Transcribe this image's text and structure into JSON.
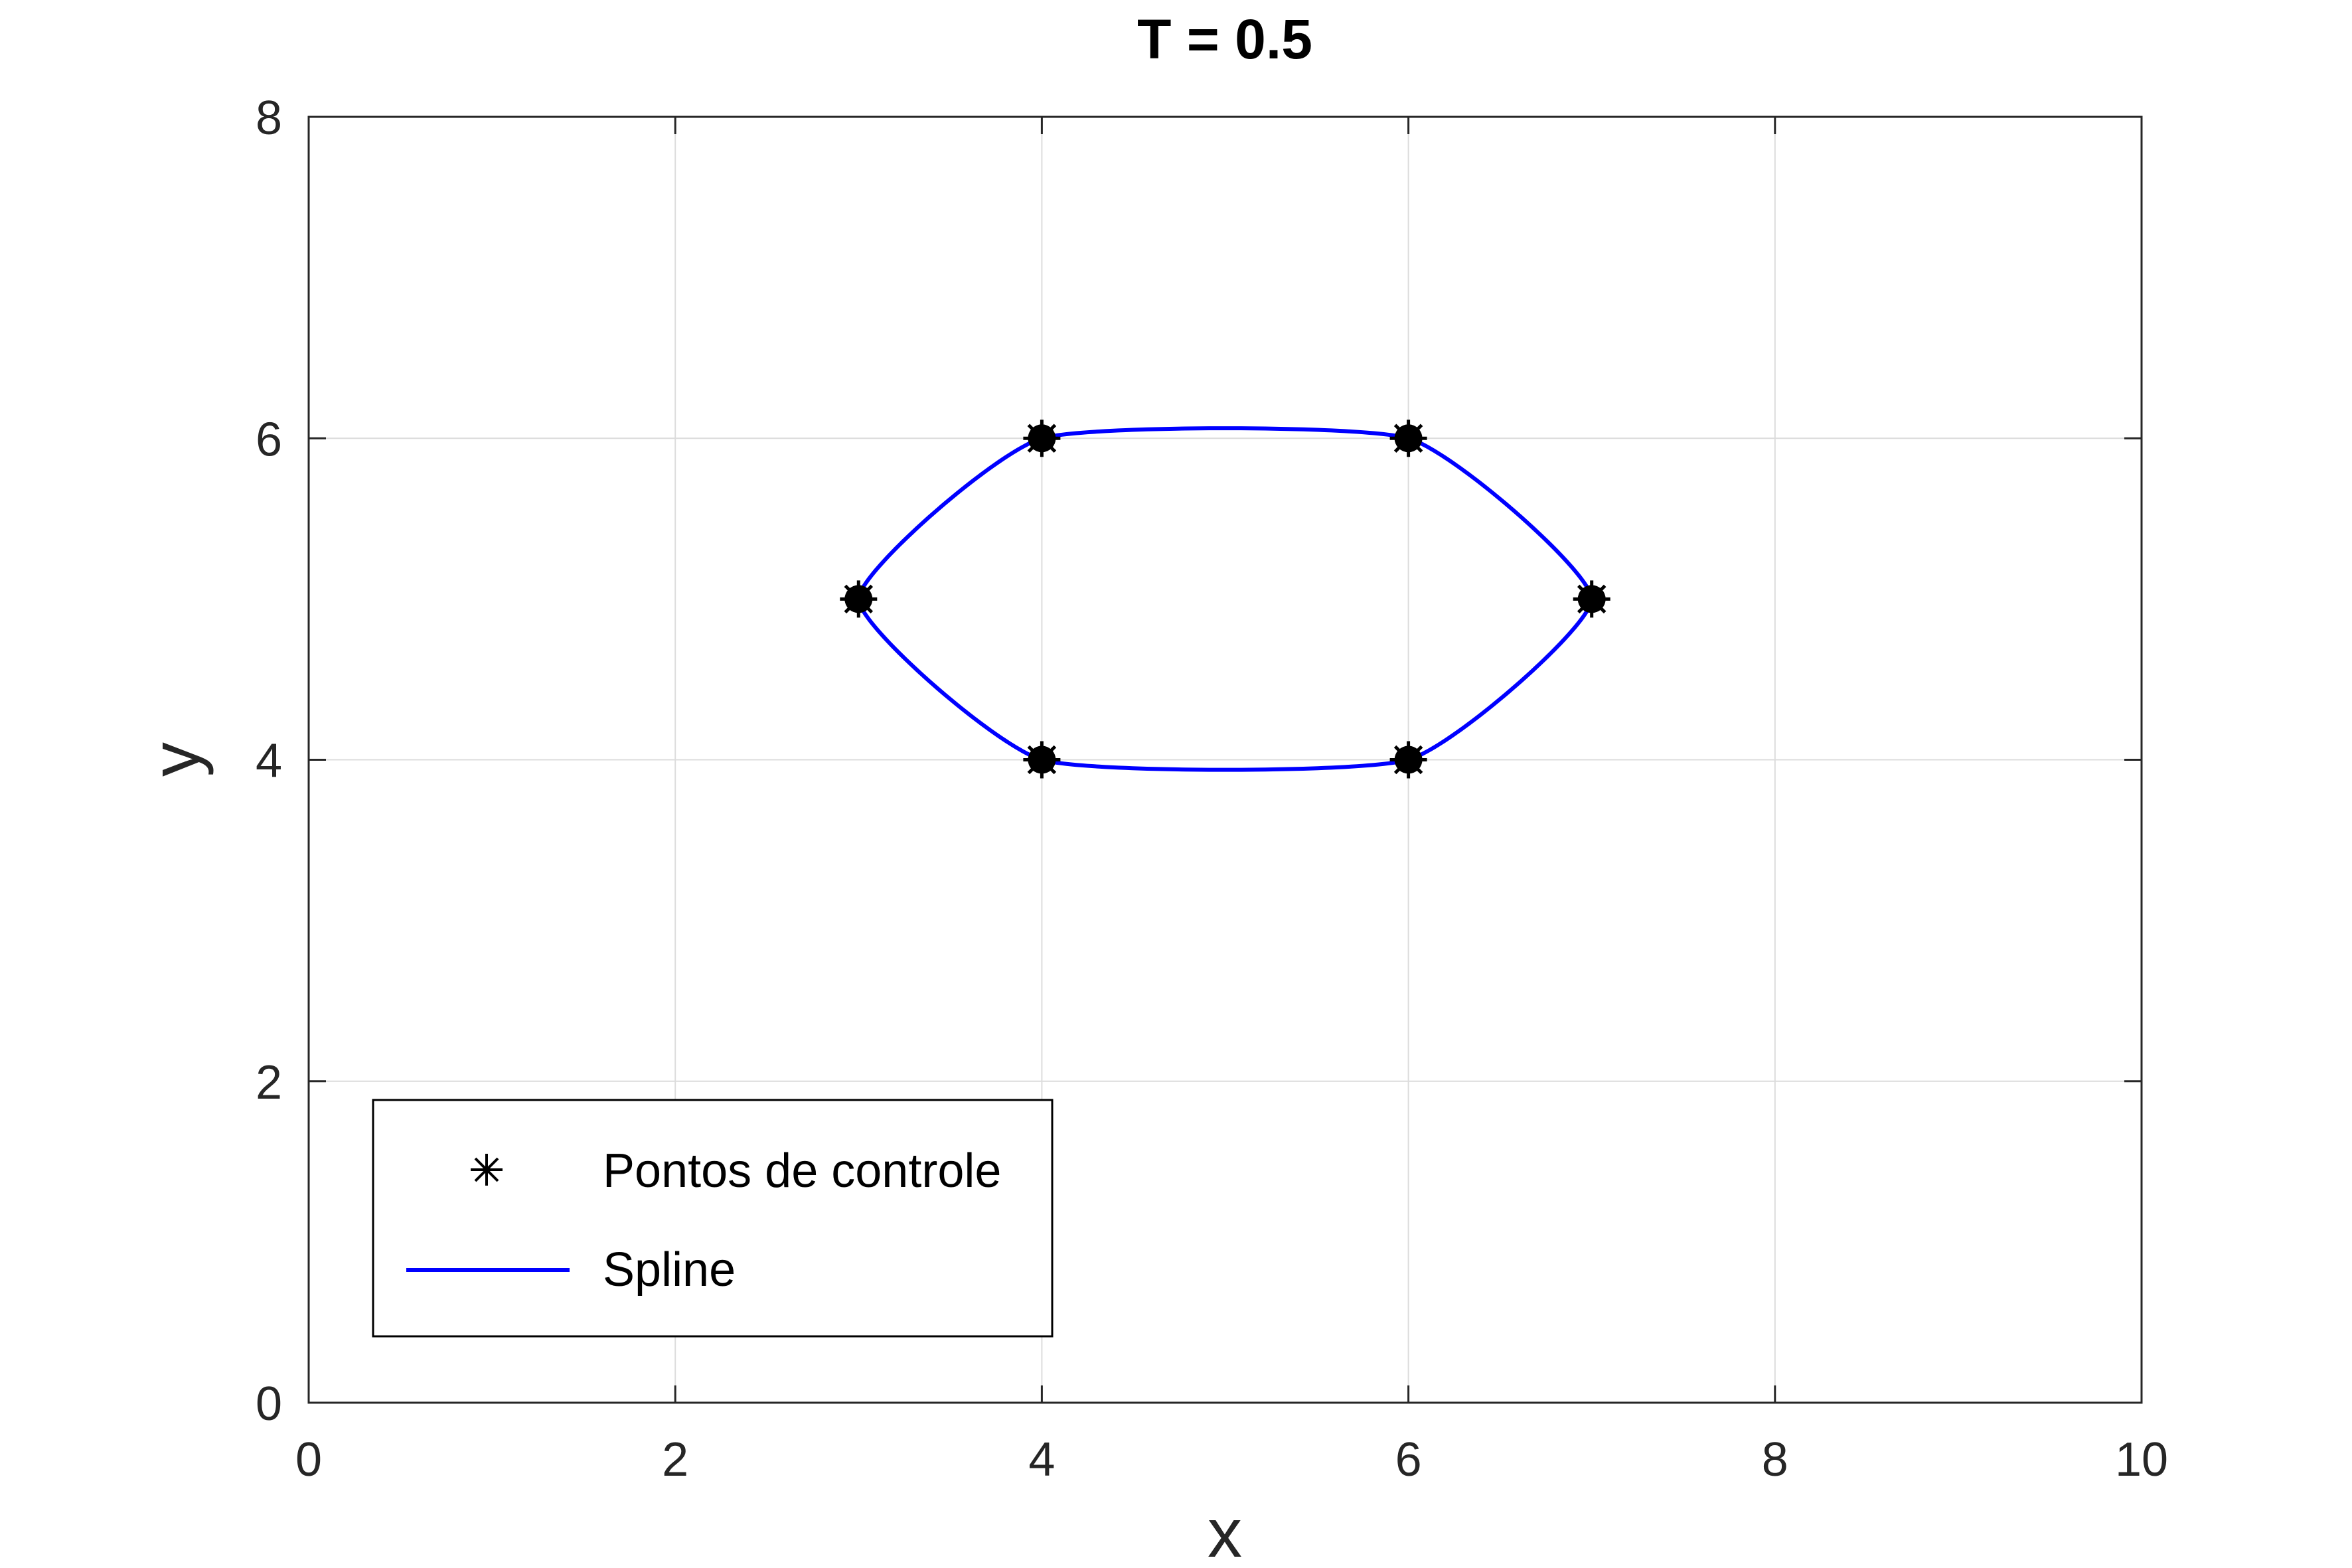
{
  "chart_data": {
    "type": "line",
    "title": "T = 0.5",
    "xlabel": "x",
    "ylabel": "y",
    "xlim": [
      0,
      10
    ],
    "ylim": [
      0,
      8
    ],
    "xticks": [
      0,
      2,
      4,
      6,
      8,
      10
    ],
    "yticks": [
      0,
      2,
      4,
      6,
      8
    ],
    "xtick_labels": [
      "0",
      "2",
      "4",
      "6",
      "8",
      "10"
    ],
    "ytick_labels": [
      "0",
      "2",
      "4",
      "6",
      "8"
    ],
    "grid": true,
    "legend_position": "bottom-left",
    "tension": 0.5,
    "control_points": {
      "name": "Pontos de controle",
      "color": "#000000",
      "x": [
        4,
        6,
        7,
        6,
        4,
        3
      ],
      "y": [
        6,
        6,
        5,
        4,
        4,
        5
      ]
    },
    "spline": {
      "name": "Spline",
      "color": "#0000ff",
      "closed": true
    }
  }
}
